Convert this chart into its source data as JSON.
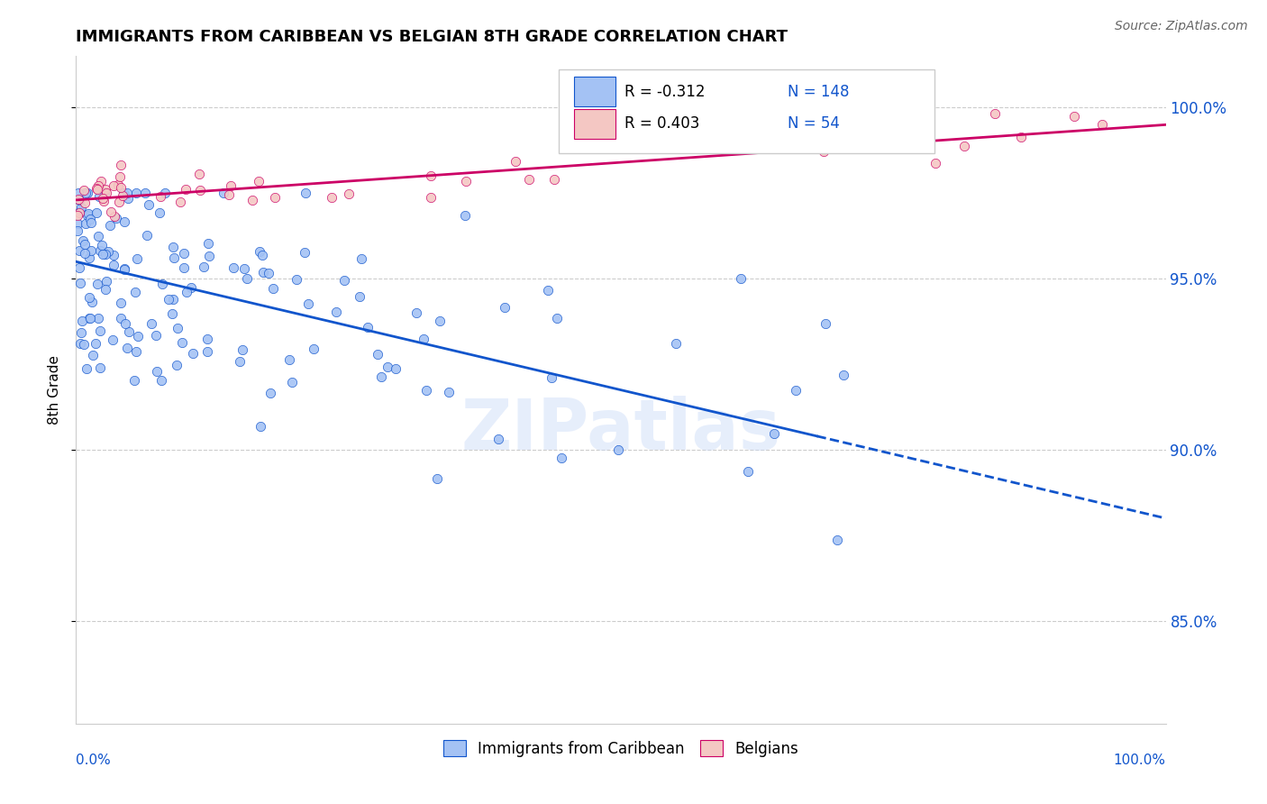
{
  "title": "IMMIGRANTS FROM CARIBBEAN VS BELGIAN 8TH GRADE CORRELATION CHART",
  "source": "Source: ZipAtlas.com",
  "ylabel": "8th Grade",
  "legend_label1": "Immigrants from Caribbean",
  "legend_label2": "Belgians",
  "r1": -0.312,
  "n1": 148,
  "r2": 0.403,
  "n2": 54,
  "color_blue": "#a4c2f4",
  "color_pink": "#f4c7c3",
  "color_line_blue": "#1155cc",
  "color_line_pink": "#cc0066",
  "color_stats": "#1155cc",
  "watermark": "ZIPatlas",
  "xlim": [
    0,
    100
  ],
  "ylim": [
    82.0,
    101.5
  ],
  "ytick_vals": [
    85,
    90,
    95,
    100
  ],
  "ytick_labels": [
    "85.0%",
    "90.0%",
    "95.0%",
    "100.0%"
  ],
  "blue_intercept": 95.5,
  "blue_slope": -0.075,
  "pink_intercept": 97.3,
  "pink_slope": 0.022
}
